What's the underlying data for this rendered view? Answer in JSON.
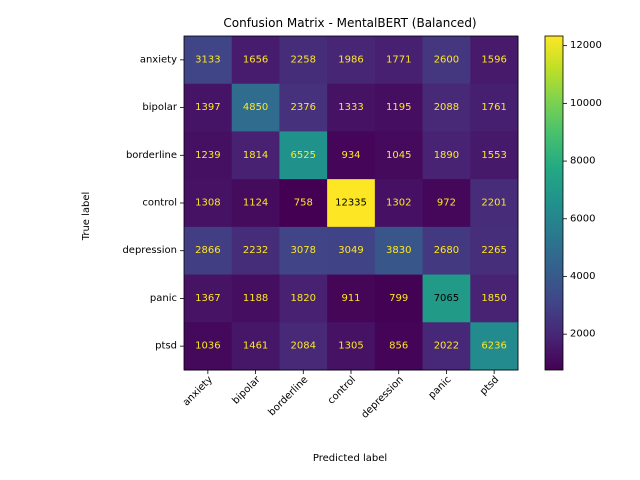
{
  "chart_data": {
    "type": "heatmap",
    "title": "Confusion Matrix - MentalBERT (Balanced)",
    "xlabel": "Predicted label",
    "ylabel": "True label",
    "x_categories": [
      "anxiety",
      "bipolar",
      "borderline",
      "control",
      "depression",
      "panic",
      "ptsd"
    ],
    "y_categories": [
      "anxiety",
      "bipolar",
      "borderline",
      "control",
      "depression",
      "panic",
      "ptsd"
    ],
    "values": [
      [
        3133,
        1656,
        2258,
        1986,
        1771,
        2600,
        1596
      ],
      [
        1397,
        4850,
        2376,
        1333,
        1195,
        2088,
        1761
      ],
      [
        1239,
        1814,
        6525,
        934,
        1045,
        1890,
        1553
      ],
      [
        1308,
        1124,
        758,
        12335,
        1302,
        972,
        2201
      ],
      [
        2866,
        2232,
        3078,
        3049,
        3830,
        2680,
        2265
      ],
      [
        1367,
        1188,
        1820,
        911,
        799,
        7065,
        1850
      ],
      [
        1036,
        1461,
        2084,
        1305,
        856,
        2022,
        6236
      ]
    ],
    "colormap": "viridis",
    "colorbar": {
      "range": [
        758,
        12335
      ],
      "ticks": [
        "2000",
        "4000",
        "6000",
        "8000",
        "10000",
        "12000"
      ]
    },
    "text_color_light": "#fde725",
    "text_color_dark": "#000000"
  }
}
